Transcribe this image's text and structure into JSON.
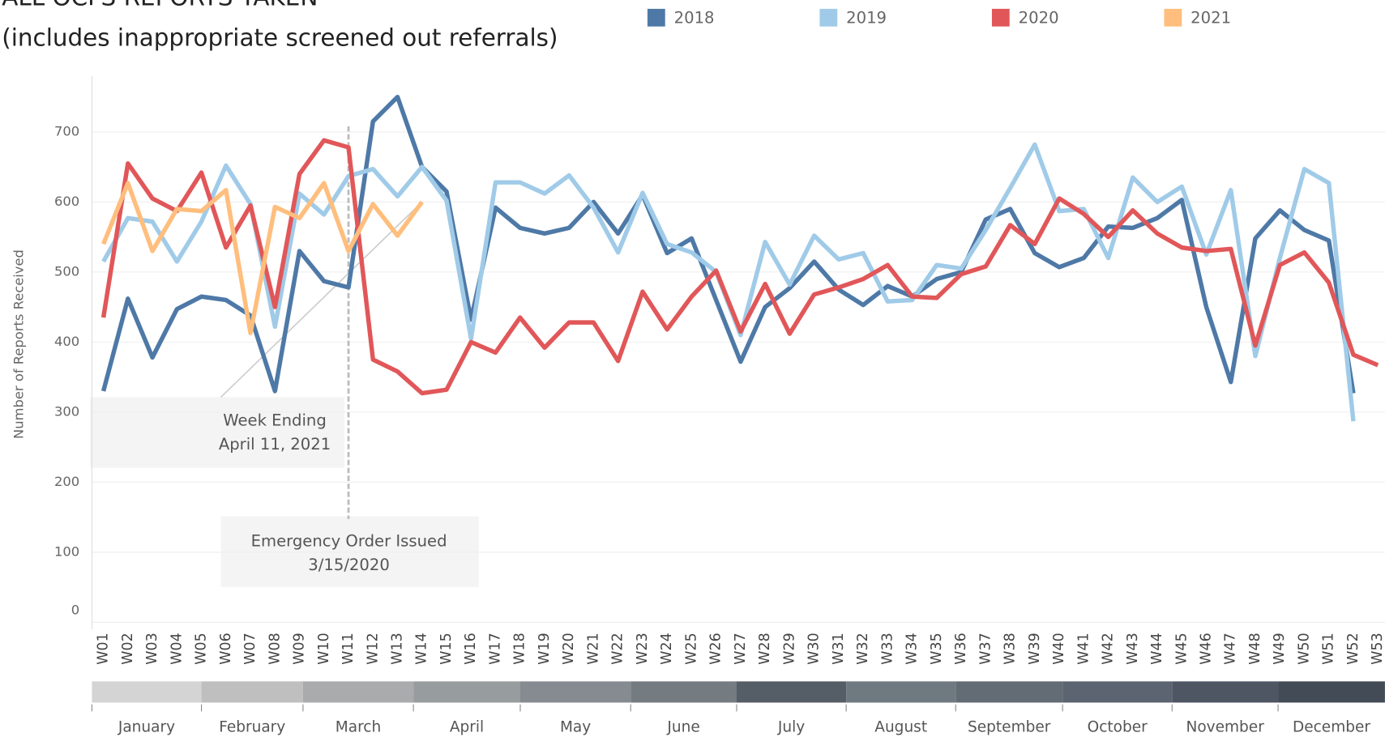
{
  "chart_data": {
    "type": "line",
    "title": "ALL OCFS REPORTS TAKEN",
    "subtitle": "(includes inappropriate screened out referrals)",
    "y_label": "Number of Reports Received",
    "categories": [
      "W01",
      "W02",
      "W03",
      "W04",
      "W05",
      "W06",
      "W07",
      "W08",
      "W09",
      "W10",
      "W11",
      "W12",
      "W13",
      "W14",
      "W15",
      "W16",
      "W17",
      "W18",
      "W19",
      "W20",
      "W21",
      "W22",
      "W23",
      "W24",
      "W25",
      "W26",
      "W27",
      "W28",
      "W29",
      "W30",
      "W31",
      "W32",
      "W33",
      "W34",
      "W35",
      "W36",
      "W37",
      "W38",
      "W39",
      "W40",
      "W41",
      "W42",
      "W43",
      "W44",
      "W45",
      "W46",
      "W47",
      "W48",
      "W49",
      "W50",
      "W51",
      "W52",
      "W53"
    ],
    "series": [
      {
        "name": "2018",
        "color": "#4e79a7",
        "values": [
          330,
          462,
          378,
          447,
          465,
          460,
          438,
          330,
          530,
          487,
          478,
          715,
          750,
          650,
          615,
          432,
          592,
          563,
          555,
          563,
          600,
          555,
          610,
          527,
          548,
          460,
          372,
          450,
          477,
          515,
          475,
          453,
          480,
          465,
          490,
          500,
          575,
          590,
          527,
          507,
          520,
          565,
          563,
          577,
          603,
          450,
          343,
          548,
          588,
          560,
          545,
          327,
          null
        ]
      },
      {
        "name": "2019",
        "color": "#a0cbe8",
        "values": [
          515,
          577,
          572,
          515,
          572,
          652,
          597,
          422,
          612,
          582,
          637,
          647,
          608,
          650,
          602,
          405,
          628,
          628,
          612,
          638,
          592,
          528,
          613,
          540,
          528,
          500,
          410,
          543,
          482,
          552,
          518,
          527,
          458,
          460,
          510,
          505,
          560,
          620,
          682,
          587,
          590,
          520,
          635,
          600,
          622,
          525,
          617,
          380,
          520,
          647,
          627,
          287,
          null
        ]
      },
      {
        "name": "2020",
        "color": "#e15759",
        "values": [
          435,
          655,
          605,
          587,
          642,
          535,
          595,
          450,
          640,
          688,
          678,
          375,
          358,
          327,
          332,
          400,
          385,
          435,
          392,
          428,
          428,
          373,
          472,
          418,
          465,
          502,
          415,
          483,
          412,
          468,
          478,
          490,
          510,
          465,
          463,
          497,
          508,
          567,
          540,
          605,
          583,
          550,
          588,
          555,
          535,
          530,
          533,
          395,
          510,
          528,
          485,
          382,
          367
        ]
      },
      {
        "name": "2021",
        "color": "#ffbe7d",
        "values": [
          540,
          627,
          530,
          590,
          587,
          617,
          413,
          593,
          577,
          627,
          530,
          597,
          552,
          600,
          null,
          null,
          null,
          null,
          null,
          null,
          null,
          null,
          null,
          null,
          null,
          null,
          null,
          null,
          null,
          null,
          null,
          null,
          null,
          null,
          null,
          null,
          null,
          null,
          null,
          null,
          null,
          null,
          null,
          null,
          null,
          null,
          null,
          null,
          null,
          null,
          null,
          null,
          null
        ]
      }
    ],
    "ylim": [
      0,
      780
    ],
    "yticks": [
      0,
      100,
      200,
      300,
      400,
      500,
      600,
      700
    ],
    "grid": true,
    "annotations": [
      {
        "text": [
          "Week Ending",
          "April 11, 2021"
        ]
      },
      {
        "text": [
          "Emergency Order Issued",
          "3/15/2020"
        ]
      }
    ],
    "months": {
      "labels": [
        "January",
        "February",
        "March",
        "April",
        "May",
        "June",
        "July",
        "August",
        "September",
        "October",
        "November",
        "December"
      ],
      "colors": [
        "#d4d4d4",
        "#bfbfbf",
        "#a9abac",
        "#979c9f",
        "#858b90",
        "#747b81",
        "#555d67",
        "#6f7a80",
        "#636c74",
        "#5b6470",
        "#4e5663",
        "#434b57"
      ]
    }
  }
}
